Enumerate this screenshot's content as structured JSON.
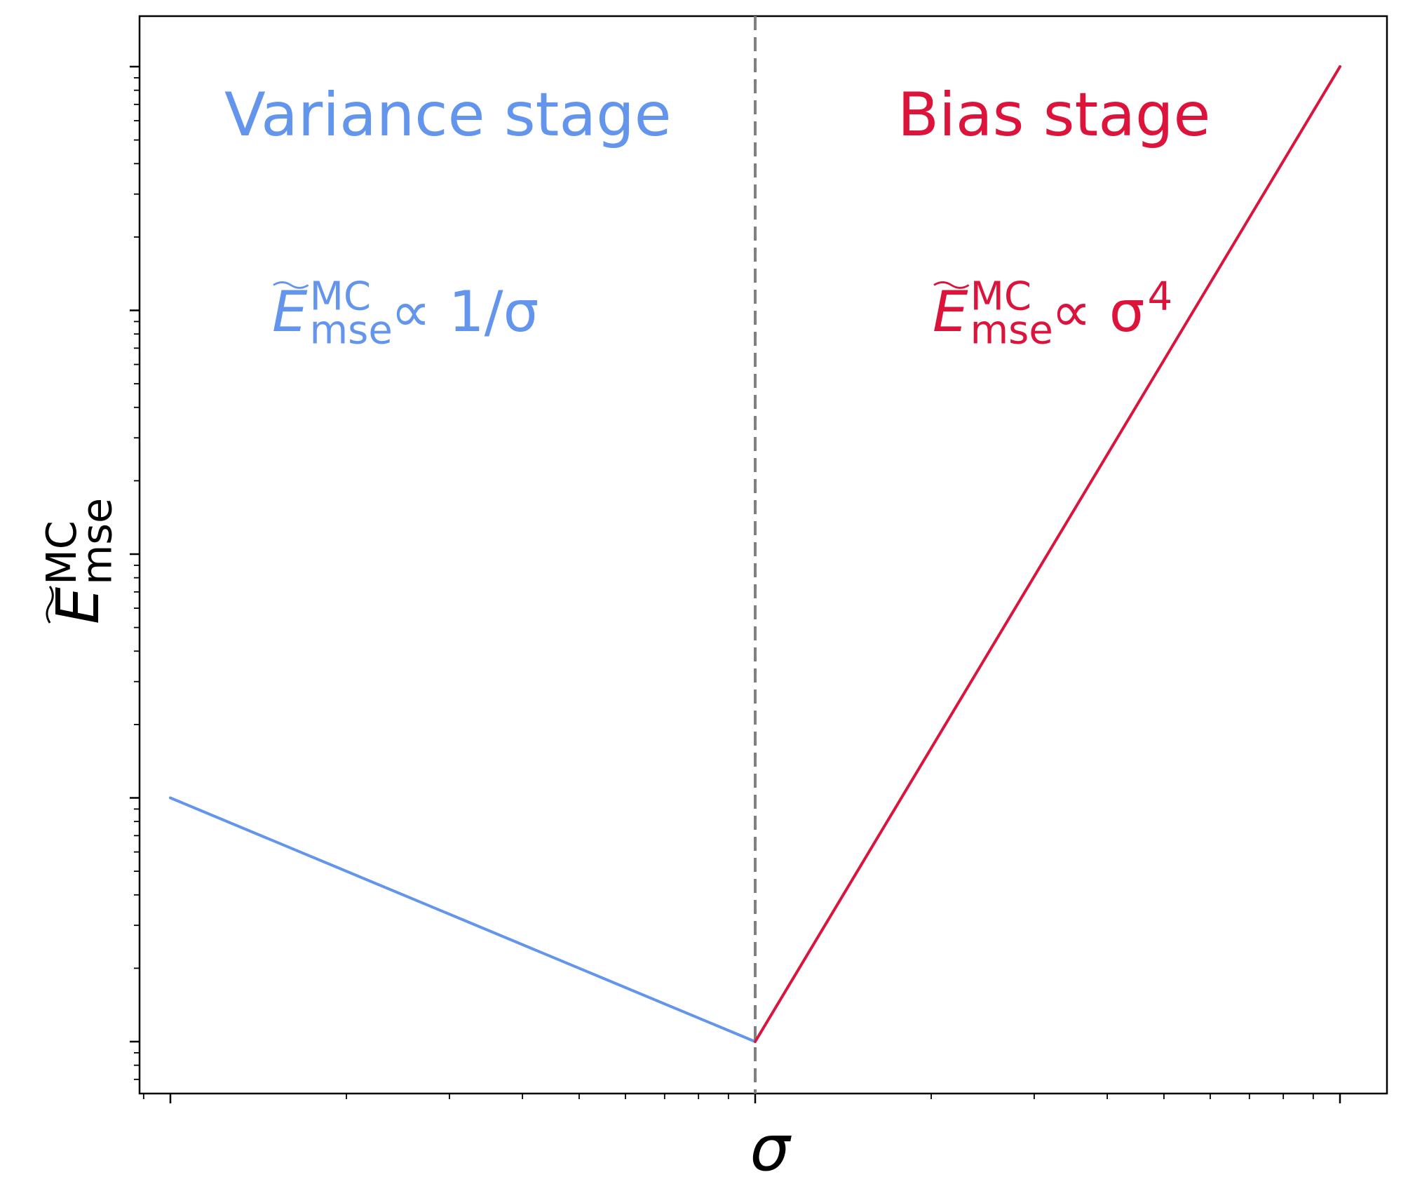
{
  "chart_data": {
    "type": "line",
    "xscale": "log",
    "yscale": "log",
    "xlabel": {
      "base": "σ"
    },
    "ylabel": {
      "base": "E",
      "sup": "MC",
      "sub": "mse"
    },
    "colors": {
      "variance": "#6495ED",
      "bias": "#DC143C",
      "divider": "#808080",
      "axis": "#000000"
    },
    "divider": {
      "x": 1,
      "style": "dashed"
    },
    "xlim": [
      0.1,
      10.5
    ],
    "ylim": [
      0.9,
      120
    ],
    "series": [
      {
        "key": "variance",
        "x": [
          0.1,
          1
        ],
        "y": [
          10,
          1
        ]
      },
      {
        "key": "bias",
        "x": [
          1,
          10
        ],
        "y": [
          1,
          10000
        ]
      }
    ],
    "y_major_ticks": [
      1,
      10,
      100,
      1000,
      10000
    ],
    "x_major_ticks": [
      0.1,
      1,
      10
    ],
    "annotations": [
      {
        "key": "variance_stage",
        "text": "Variance stage",
        "color": "#6495ED",
        "x": 0.33,
        "y": 4000
      },
      {
        "key": "bias_stage",
        "text": "Bias stage",
        "color": "#DC143C",
        "x": 3.2,
        "y": 4000
      },
      {
        "key": "variance_formula",
        "base": "E",
        "sup": "MC",
        "sub": "mse",
        "rel": "∝ 1/σ",
        "color": "#6495ED",
        "x": 0.25,
        "y": 400
      },
      {
        "key": "bias_formula",
        "base": "E",
        "sup": "MC",
        "sub": "mse",
        "rel": "∝ σ",
        "relsup": "4",
        "color": "#DC143C",
        "x": 3.0,
        "y": 400
      }
    ],
    "grid": false,
    "legend": "none"
  }
}
